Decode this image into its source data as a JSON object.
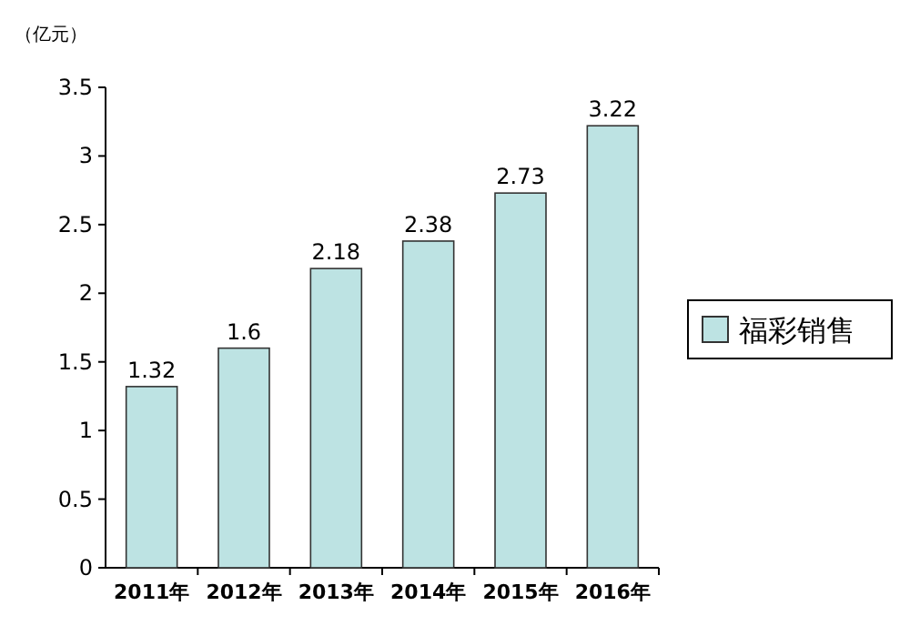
{
  "chart_data": {
    "type": "bar",
    "ylabel": "（亿元）",
    "categories": [
      "2011年",
      "2012年",
      "2013年",
      "2014年",
      "2015年",
      "2016年"
    ],
    "series": [
      {
        "name": "福彩销售",
        "color": "#bde3e3",
        "values": [
          1.32,
          1.6,
          2.18,
          2.38,
          2.73,
          3.22
        ]
      }
    ],
    "ylim": [
      0,
      3.5
    ],
    "yticks": [
      0,
      0.5,
      1,
      1.5,
      2,
      2.5,
      3,
      3.5
    ],
    "data_labels": true,
    "legend": "right",
    "grid": false
  }
}
